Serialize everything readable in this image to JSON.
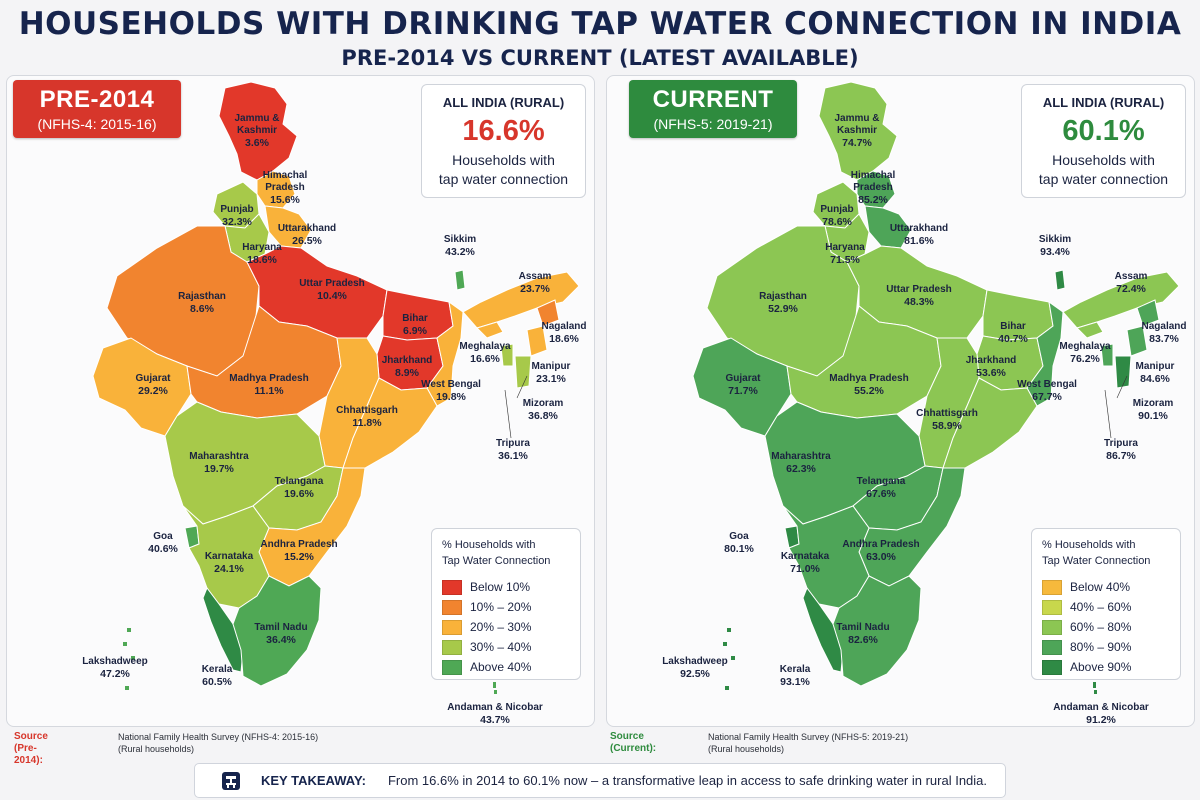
{
  "title": "HOUSEHOLDS WITH DRINKING TAP WATER CONNECTION IN INDIA",
  "subtitle": "PRE-2014 VS CURRENT (LATEST AVAILABLE)",
  "colors": {
    "below10": "#e2382a",
    "r10_20": "#f1842f",
    "r20_30": "#f9b23a",
    "r30_40": "#a7c94a",
    "above40": "#4fa855",
    "below40": "#f6b93c",
    "r40_60": "#c8d74c",
    "r60_80": "#8cc653",
    "r80_90": "#4ea558",
    "above90": "#2f8a45",
    "pre_accent": "#d7362b",
    "cur_accent": "#2e8b3e"
  },
  "left": {
    "badge_title": "PRE-2014",
    "badge_sub": "(NFHS-4: 2015-16)",
    "summary_label": "ALL INDIA (RURAL)",
    "summary_value": "16.6%",
    "summary_desc_1": "Households with",
    "summary_desc_2": "tap water connection",
    "legend_title_1": "% Households with",
    "legend_title_2": "Tap Water Connection",
    "legend": [
      {
        "label": "Below 10%",
        "color": "#e2382a"
      },
      {
        "label": "10% – 20%",
        "color": "#f1842f"
      },
      {
        "label": "20% – 30%",
        "color": "#f9b23a"
      },
      {
        "label": "30% – 40%",
        "color": "#a7c94a"
      },
      {
        "label": "Above 40%",
        "color": "#4fa855"
      }
    ],
    "states": {
      "jk_name_1": "Jammu &",
      "jk_name_2": "Kashmir",
      "jk": "3.6%",
      "hp_name_1": "Himachal",
      "hp_name_2": "Pradesh",
      "hp": "15.6%",
      "pb_name": "Punjab",
      "pb": "32.3%",
      "uk_name": "Uttarakhand",
      "uk": "26.5%",
      "hr_name": "Haryana",
      "hr": "18.6%",
      "rj_name": "Rajasthan",
      "rj": "8.6%",
      "up_name": "Uttar Pradesh",
      "up": "10.4%",
      "br_name": "Bihar",
      "br": "6.9%",
      "sk_name": "Sikkim",
      "sk": "43.2%",
      "as_name": "Assam",
      "as": "23.7%",
      "nl_name": "Nagaland",
      "nl": "18.6%",
      "ml_name": "Meghalaya",
      "ml": "16.6%",
      "mn_name": "Manipur",
      "mn": "23.1%",
      "mz_name": "Mizoram",
      "mz": "36.8%",
      "tr_name": "Tripura",
      "tr": "36.1%",
      "jh_name": "Jharkhand",
      "jh": "8.9%",
      "wb_name": "West Bengal",
      "wb": "19.8%",
      "gj_name": "Gujarat",
      "gj": "29.2%",
      "mp_name": "Madhya Pradesh",
      "mp": "11.1%",
      "cg_name": "Chhattisgarh",
      "cg": "11.8%",
      "mh_name": "Maharashtra",
      "mh": "19.7%",
      "tg_name": "Telangana",
      "tg": "19.6%",
      "ga_name": "Goa",
      "ga": "40.6%",
      "ka_name": "Karnataka",
      "ka": "24.1%",
      "ap_name": "Andhra Pradesh",
      "ap": "15.2%",
      "tn_name": "Tamil Nadu",
      "tn": "36.4%",
      "ld_name": "Lakshadweep",
      "ld": "47.2%",
      "kl_name": "Kerala",
      "kl": "60.5%",
      "an_name": "Andaman & Nicobar",
      "an": "43.7%"
    },
    "source_label": "Source (Pre-2014):",
    "source_text_1": "National Family Health Survey (NFHS-4: 2015-16)",
    "source_text_2": "(Rural households)"
  },
  "right": {
    "badge_title": "CURRENT",
    "badge_sub": "(NFHS-5: 2019-21)",
    "summary_label": "ALL INDIA (RURAL)",
    "summary_value": "60.1%",
    "summary_desc_1": "Households with",
    "summary_desc_2": "tap water connection",
    "legend_title_1": "% Households with",
    "legend_title_2": "Tap Water Connection",
    "legend": [
      {
        "label": "Below 40%",
        "color": "#f6b93c"
      },
      {
        "label": "40% – 60%",
        "color": "#c8d74c"
      },
      {
        "label": "60% – 80%",
        "color": "#8cc653"
      },
      {
        "label": "80% – 90%",
        "color": "#4ea558"
      },
      {
        "label": "Above 90%",
        "color": "#2f8a45"
      }
    ],
    "states": {
      "jk_name_1": "Jammu &",
      "jk_name_2": "Kashmir",
      "jk": "74.7%",
      "hp_name_1": "Himachal",
      "hp_name_2": "Pradesh",
      "hp": "85.2%",
      "pb_name": "Punjab",
      "pb": "78.6%",
      "uk_name": "Uttarakhand",
      "uk": "81.6%",
      "hr_name": "Haryana",
      "hr": "71.5%",
      "rj_name": "Rajasthan",
      "rj": "52.9%",
      "up_name": "Uttar Pradesh",
      "up": "48.3%",
      "br_name": "Bihar",
      "br": "40.7%",
      "sk_name": "Sikkim",
      "sk": "93.4%",
      "as_name": "Assam",
      "as": "72.4%",
      "nl_name": "Nagaland",
      "nl": "83.7%",
      "ml_name": "Meghalaya",
      "ml": "76.2%",
      "mn_name": "Manipur",
      "mn": "84.6%",
      "mz_name": "Mizoram",
      "mz": "90.1%",
      "tr_name": "Tripura",
      "tr": "86.7%",
      "jh_name": "Jharkhand",
      "jh": "53.6%",
      "wb_name": "West Bengal",
      "wb": "67.7%",
      "gj_name": "Gujarat",
      "gj": "71.7%",
      "mp_name": "Madhya Pradesh",
      "mp": "55.2%",
      "cg_name": "Chhattisgarh",
      "cg": "58.9%",
      "mh_name": "Maharashtra",
      "mh": "62.3%",
      "tg_name": "Telangana",
      "tg": "67.6%",
      "ga_name": "Goa",
      "ga": "80.1%",
      "ka_name": "Karnataka",
      "ka": "71.0%",
      "ap_name": "Andhra Pradesh",
      "ap": "63.0%",
      "tn_name": "Tamil Nadu",
      "tn": "82.6%",
      "ld_name": "Lakshadweep",
      "ld": "92.5%",
      "kl_name": "Kerala",
      "kl": "93.1%",
      "an_name": "Andaman & Nicobar",
      "an": "91.2%"
    },
    "source_label": "Source (Current):",
    "source_text_1": "National Family Health Survey (NFHS-5: 2019-21)",
    "source_text_2": "(Rural households)"
  },
  "takeaway": {
    "icon": "water-tap-icon",
    "label": "KEY TAKEAWAY:",
    "text": "From 16.6% in 2014 to 60.1% now – a transformative leap in access to safe drinking water in rural India."
  }
}
